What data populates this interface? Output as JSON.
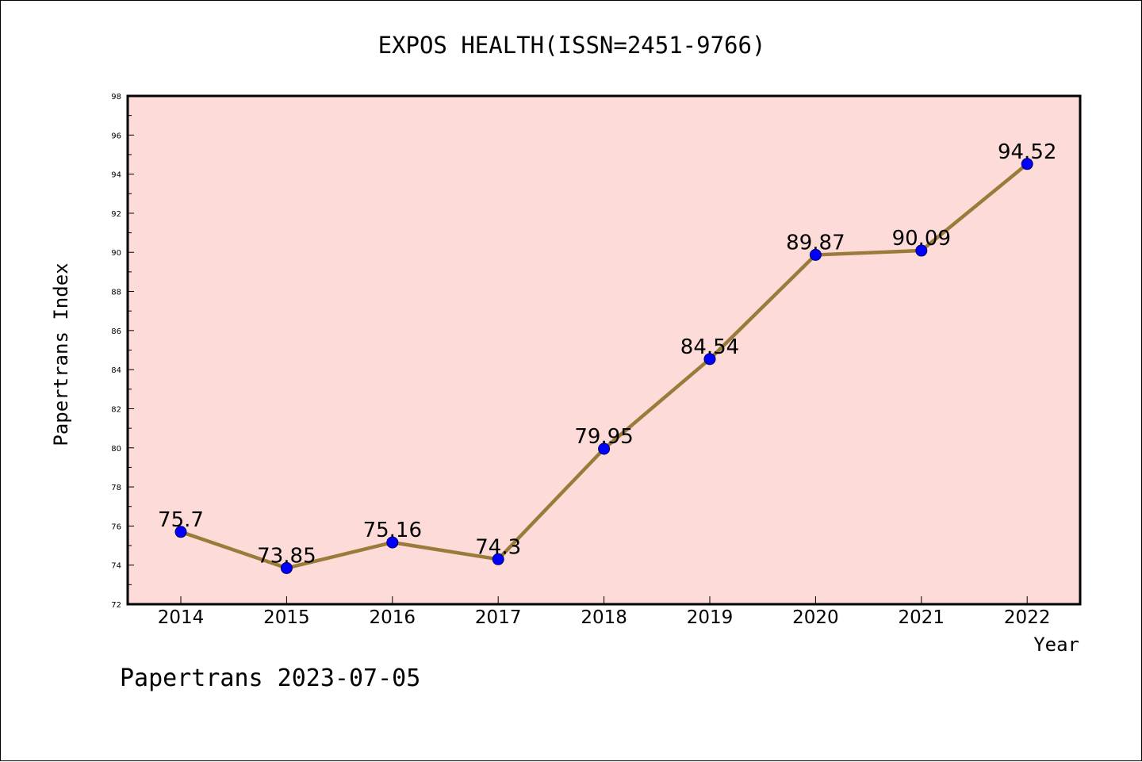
{
  "chart_data": {
    "type": "line",
    "title": "EXPOS HEALTH(ISSN=2451-9766)",
    "xlabel": "Year",
    "ylabel": "Papertrans Index",
    "categories": [
      "2014",
      "2015",
      "2016",
      "2017",
      "2018",
      "2019",
      "2020",
      "2021",
      "2022"
    ],
    "series": [
      {
        "values": [
          75.7,
          73.85,
          75.16,
          74.3,
          79.95,
          84.54,
          89.87,
          90.09,
          94.52
        ],
        "labels": [
          "75.7",
          "73.85",
          "75.16",
          "74.3",
          "79.95",
          "84.54",
          "89.87",
          "90.09",
          "94.52"
        ]
      }
    ],
    "ylim": [
      72,
      98
    ],
    "ytick_labels": [
      "72",
      "74",
      "76",
      "78",
      "80",
      "82",
      "84",
      "86",
      "88",
      "90",
      "92",
      "94",
      "96",
      "98"
    ],
    "grid": false,
    "footer": "Papertrans 2023-07-05",
    "colors": {
      "plot_background": "#fddbd8",
      "line": "#9a7b3a",
      "marker": "#0000ff",
      "text": "#000000"
    }
  }
}
